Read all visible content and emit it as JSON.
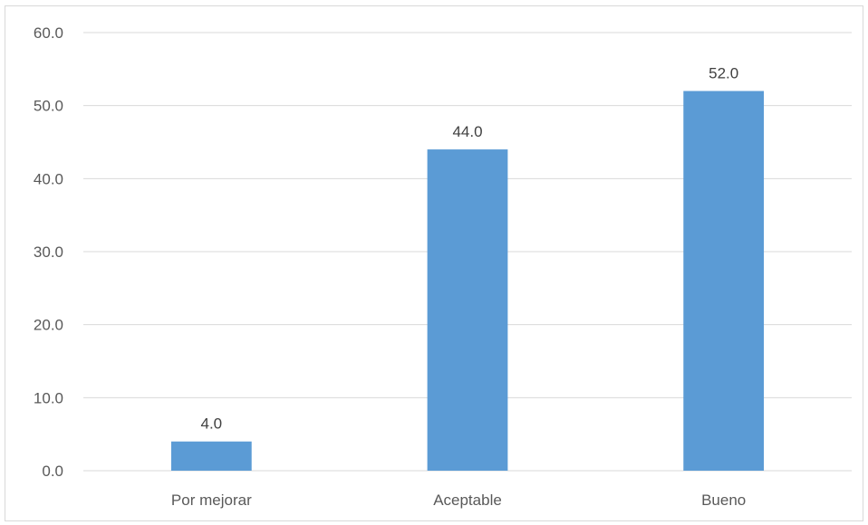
{
  "chart_data": {
    "type": "bar",
    "categories": [
      "Por mejorar",
      "Aceptable",
      "Bueno"
    ],
    "values": [
      4.0,
      44.0,
      52.0
    ],
    "data_labels": [
      "4.0",
      "44.0",
      "52.0"
    ],
    "ylim": [
      0,
      60
    ],
    "yticks": [
      "0.0",
      "10.0",
      "20.0",
      "30.0",
      "40.0",
      "50.0",
      "60.0"
    ],
    "grid": true,
    "legend": "none",
    "bar_color": "#5b9bd5",
    "grid_color": "#d9d9d9"
  }
}
